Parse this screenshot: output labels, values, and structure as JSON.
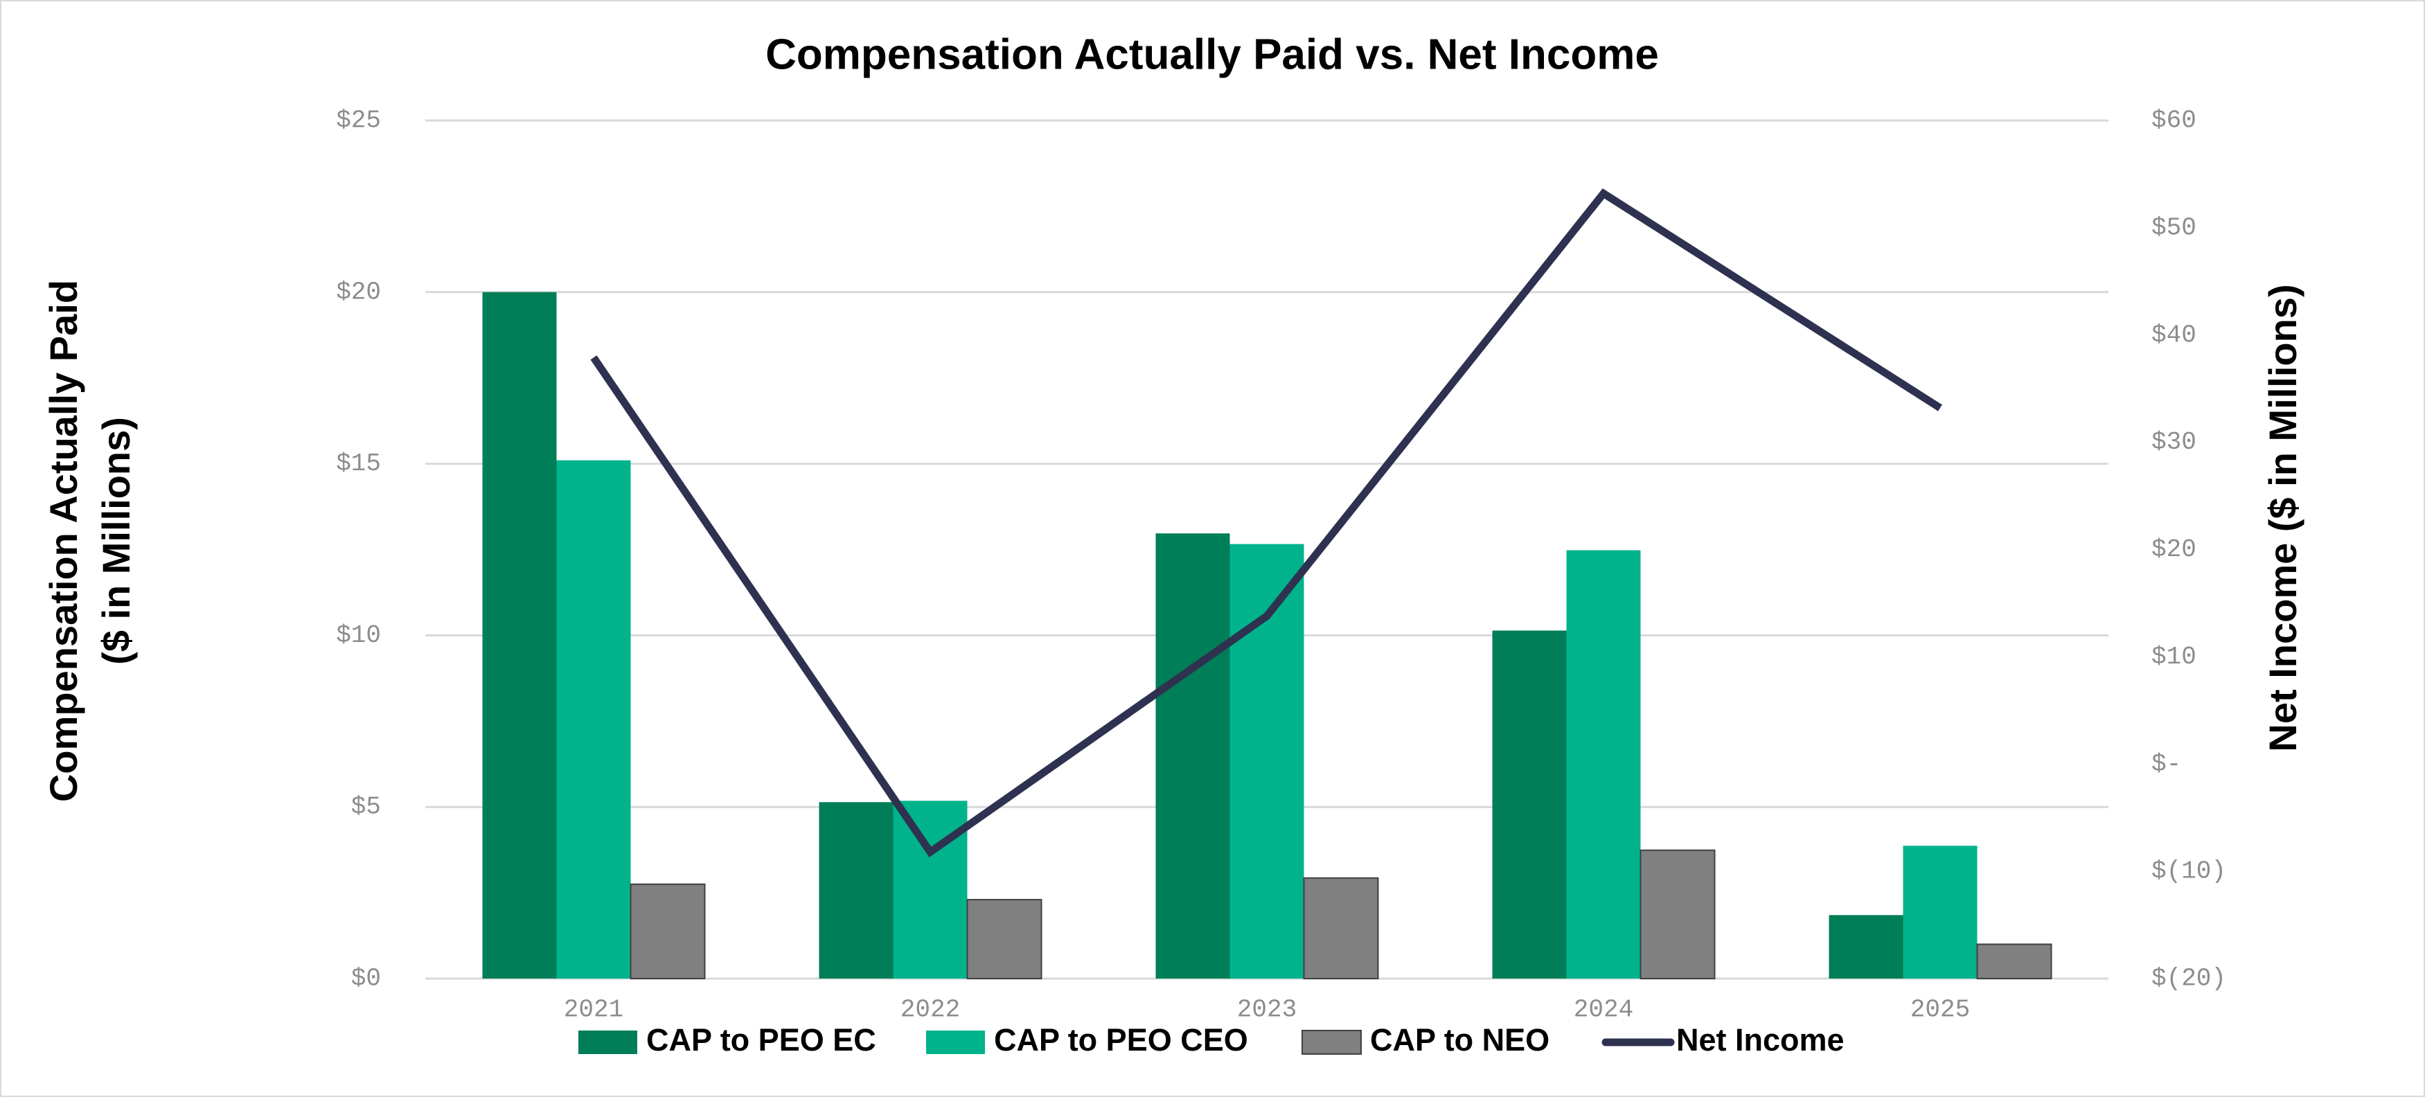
{
  "chart_data": {
    "type": "bar",
    "title": "Compensation Actually Paid vs. Net Income",
    "y_label": [
      "Compensation Actually Paid",
      "($ in Millions)"
    ],
    "y2_label": "Net Income ($ in Millions)",
    "categories": [
      "2021",
      "2022",
      "2023",
      "2024",
      "2025"
    ],
    "series": [
      {
        "name": "CAP to PEO EC",
        "type": "bar",
        "color": "#007e57",
        "values": [
          20.0,
          5.14,
          12.97,
          10.14,
          1.85
        ]
      },
      {
        "name": "CAP to PEO CEO",
        "type": "bar",
        "color": "#00b38c",
        "values": [
          15.1,
          5.18,
          12.66,
          12.48,
          3.87
        ]
      },
      {
        "name": "CAP to NEO",
        "type": "bar",
        "color": "#808080",
        "values": [
          2.75,
          2.3,
          2.93,
          3.74,
          1.0
        ]
      },
      {
        "name": "Net Income",
        "type": "line",
        "axis": "y2",
        "color": "#2e3250",
        "values": [
          37.9,
          -8.2,
          13.8,
          53.2,
          33.2
        ]
      }
    ],
    "ylim": [
      0,
      25
    ],
    "yticks": [
      {
        "value": 0,
        "label": "$0"
      },
      {
        "value": 5,
        "label": "$5"
      },
      {
        "value": 10,
        "label": "$10"
      },
      {
        "value": 15,
        "label": "$15"
      },
      {
        "value": 20,
        "label": "$20"
      },
      {
        "value": 25,
        "label": "$25"
      }
    ],
    "y2lim": [
      -20,
      60
    ],
    "y2ticks": [
      {
        "value": -20,
        "label": "$(20)"
      },
      {
        "value": -10,
        "label": "$(10)"
      },
      {
        "value": 0,
        "label": "$-"
      },
      {
        "value": 10,
        "label": "$10"
      },
      {
        "value": 20,
        "label": "$20"
      },
      {
        "value": 30,
        "label": "$30"
      },
      {
        "value": 40,
        "label": "$40"
      },
      {
        "value": 50,
        "label": "$50"
      },
      {
        "value": 60,
        "label": "$60"
      }
    ],
    "grid": true,
    "legend": "bottom"
  }
}
